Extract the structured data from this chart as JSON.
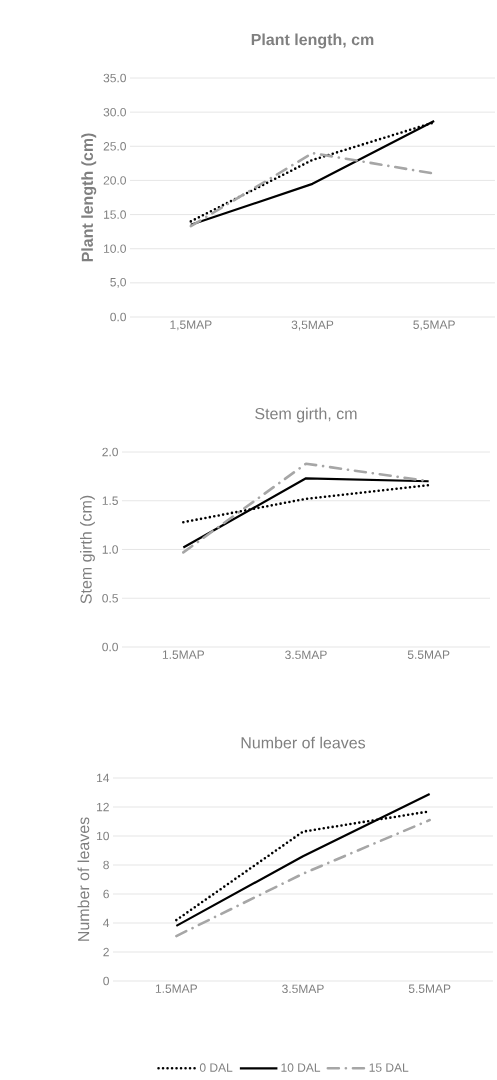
{
  "chart_data": [
    {
      "type": "line",
      "title": "Plant length, cm",
      "ylabel": "Plant length (cm)",
      "categories": [
        "1,5MAP",
        "3,5MAP",
        "5,5MAP"
      ],
      "series": [
        {
          "color": "#000000",
          "line_style": "dotted",
          "values": [
            14.0,
            23.0,
            28.5
          ]
        },
        {
          "color": "#000000",
          "line_style": "solid",
          "values": [
            13.5,
            19.5,
            28.7
          ]
        },
        {
          "color": "#a6a6a6",
          "line_style": "dashed",
          "values": [
            13.3,
            24.0,
            21.0
          ]
        }
      ],
      "ylim": [
        0,
        35
      ],
      "yticks": [
        {
          "value": 0,
          "label": "0.0"
        },
        {
          "value": 5,
          "label": "5,0"
        },
        {
          "value": 10,
          "label": "10.0"
        },
        {
          "value": 15,
          "label": "15.0"
        },
        {
          "value": 20,
          "label": "20.0"
        },
        {
          "value": 25,
          "label": "25.0"
        },
        {
          "value": 30,
          "label": "30.0"
        },
        {
          "value": 35,
          "label": "35.0"
        }
      ],
      "grid": "y",
      "legend": false
    },
    {
      "type": "line",
      "title": "Stem girth, cm",
      "ylabel": "Stem girth (cm)",
      "categories": [
        "1.5MAP",
        "3.5MAP",
        "5.5MAP"
      ],
      "series": [
        {
          "color": "#000000",
          "line_style": "dotted",
          "values": [
            1.28,
            1.52,
            1.66
          ]
        },
        {
          "color": "#000000",
          "line_style": "solid",
          "values": [
            1.02,
            1.73,
            1.7
          ]
        },
        {
          "color": "#a6a6a6",
          "line_style": "dashed",
          "values": [
            0.97,
            1.88,
            1.7
          ]
        }
      ],
      "ylim": [
        0,
        2
      ],
      "yticks": [
        {
          "value": 0,
          "label": "0.0"
        },
        {
          "value": 0.5,
          "label": "0.5"
        },
        {
          "value": 1,
          "label": "1.0"
        },
        {
          "value": 1.5,
          "label": "1.5"
        },
        {
          "value": 2,
          "label": "2.0"
        }
      ],
      "grid": "y",
      "legend": false
    },
    {
      "type": "line",
      "title": "Number of leaves",
      "ylabel": "Number of leaves",
      "categories": [
        "1.5MAP",
        "3.5MAP",
        "5.5MAP"
      ],
      "series": [
        {
          "name": "0 DAL",
          "color": "#000000",
          "line_style": "dotted",
          "values": [
            4.2,
            10.3,
            11.7
          ]
        },
        {
          "name": "10 DAL",
          "color": "#000000",
          "line_style": "solid",
          "values": [
            3.8,
            8.6,
            12.9
          ]
        },
        {
          "name": "15 DAL",
          "color": "#a6a6a6",
          "line_style": "dashed",
          "values": [
            3.1,
            7.4,
            11.1
          ]
        }
      ],
      "ylim": [
        0,
        14
      ],
      "yticks": [
        0,
        2,
        4,
        6,
        8,
        10,
        12,
        14
      ],
      "grid": "y",
      "legend": "bottom"
    }
  ]
}
